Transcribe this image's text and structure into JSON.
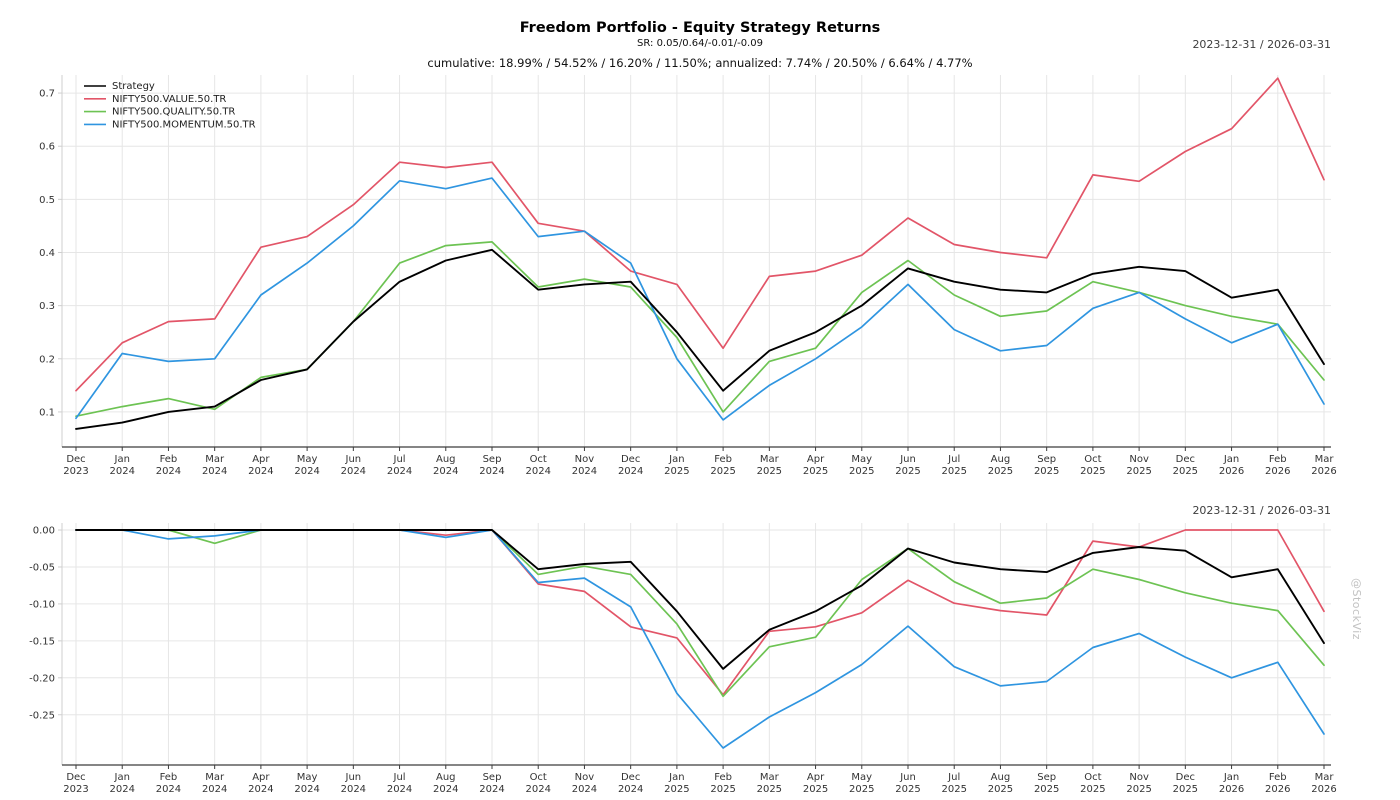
{
  "header": {
    "title": "Freedom Portfolio - Equity Strategy Returns",
    "subtitle_sr": "SR: 0.05/0.64/-0.01/-0.09",
    "stats_line": "cumulative: 18.99% / 54.52% / 16.20% / 11.50%; annualized: 7.74% / 20.50% / 6.64% / 4.77%",
    "date_range_top": "2023-12-31 / 2026-03-31",
    "date_range_bottom": "2023-12-31 / 2026-03-31"
  },
  "watermark": "@StockViz",
  "chart_data": [
    {
      "type": "line",
      "panel": "cumulative-returns",
      "date_range": "2023-12-31 / 2026-03-31",
      "grid": true,
      "show_legend": true,
      "legend_position": "top-left",
      "ylim": [
        0.034,
        0.734
      ],
      "yticks": {
        "values": [
          0.1,
          0.2,
          0.3,
          0.4,
          0.5,
          0.6,
          0.7
        ],
        "labels": [
          "0.1",
          "0.2",
          "0.3",
          "0.4",
          "0.5",
          "0.6",
          "0.7"
        ]
      },
      "categories": [
        "Dec 2023",
        "Jan 2024",
        "Feb 2024",
        "Mar 2024",
        "Apr 2024",
        "May 2024",
        "Jun 2024",
        "Jul 2024",
        "Aug 2024",
        "Sep 2024",
        "Oct 2024",
        "Nov 2024",
        "Dec 2024",
        "Jan 2025",
        "Feb 2025",
        "Mar 2025",
        "Apr 2025",
        "May 2025",
        "Jun 2025",
        "Jul 2025",
        "Aug 2025",
        "Sep 2025",
        "Oct 2025",
        "Nov 2025",
        "Dec 2025",
        "Jan 2026",
        "Feb 2026",
        "Mar 2026"
      ],
      "series": [
        {
          "name": "Strategy",
          "color": "#000000",
          "values": [
            0.068,
            0.08,
            0.1,
            0.11,
            0.16,
            0.18,
            0.27,
            0.345,
            0.385,
            0.405,
            0.33,
            0.34,
            0.345,
            0.25,
            0.14,
            0.215,
            0.25,
            0.3,
            0.37,
            0.345,
            0.33,
            0.325,
            0.36,
            0.373,
            0.365,
            0.315,
            0.33,
            0.19
          ]
        },
        {
          "name": "NIFTY500.VALUE.50.TR",
          "color": "#e25568",
          "values": [
            0.14,
            0.23,
            0.27,
            0.275,
            0.41,
            0.43,
            0.49,
            0.57,
            0.56,
            0.57,
            0.455,
            0.44,
            0.365,
            0.34,
            0.22,
            0.355,
            0.365,
            0.395,
            0.465,
            0.415,
            0.4,
            0.39,
            0.546,
            0.534,
            0.59,
            0.633,
            0.728,
            0.537
          ]
        },
        {
          "name": "NIFTY500.QUALITY.50.TR",
          "color": "#6dc353",
          "values": [
            0.092,
            0.11,
            0.125,
            0.105,
            0.165,
            0.18,
            0.27,
            0.38,
            0.413,
            0.42,
            0.335,
            0.35,
            0.335,
            0.24,
            0.1,
            0.195,
            0.22,
            0.325,
            0.385,
            0.32,
            0.28,
            0.29,
            0.345,
            0.325,
            0.3,
            0.28,
            0.265,
            0.16
          ]
        },
        {
          "name": "NIFTY500.MOMENTUM.50.TR",
          "color": "#2f95e0",
          "values": [
            0.088,
            0.21,
            0.195,
            0.2,
            0.32,
            0.38,
            0.45,
            0.535,
            0.52,
            0.54,
            0.43,
            0.44,
            0.38,
            0.2,
            0.085,
            0.15,
            0.2,
            0.26,
            0.34,
            0.255,
            0.215,
            0.225,
            0.295,
            0.325,
            0.275,
            0.23,
            0.265,
            0.115
          ]
        }
      ]
    },
    {
      "type": "line",
      "panel": "drawdowns",
      "date_range": "2023-12-31 / 2026-03-31",
      "grid": true,
      "show_legend": false,
      "ylim": [
        -0.318,
        0.0095
      ],
      "yticks": {
        "values": [
          0.0,
          -0.05,
          -0.1,
          -0.15,
          -0.2,
          -0.25
        ],
        "labels": [
          "0.00",
          "-0.05",
          "-0.10",
          "-0.15",
          "-0.20",
          "-0.25"
        ]
      },
      "categories": [
        "Dec 2023",
        "Jan 2024",
        "Feb 2024",
        "Mar 2024",
        "Apr 2024",
        "May 2024",
        "Jun 2024",
        "Jul 2024",
        "Aug 2024",
        "Sep 2024",
        "Oct 2024",
        "Nov 2024",
        "Dec 2024",
        "Jan 2025",
        "Feb 2025",
        "Mar 2025",
        "Apr 2025",
        "May 2025",
        "Jun 2025",
        "Jul 2025",
        "Aug 2025",
        "Sep 2025",
        "Oct 2025",
        "Nov 2025",
        "Dec 2025",
        "Jan 2026",
        "Feb 2026",
        "Mar 2026"
      ],
      "series": [
        {
          "name": "Strategy",
          "color": "#000000",
          "values": [
            0,
            0,
            0,
            0,
            0,
            0,
            0,
            0,
            0,
            0,
            -0.053,
            -0.046,
            -0.043,
            -0.11,
            -0.188,
            -0.135,
            -0.11,
            -0.075,
            -0.025,
            -0.044,
            -0.053,
            -0.057,
            -0.031,
            -0.023,
            -0.028,
            -0.064,
            -0.053,
            -0.153
          ]
        },
        {
          "name": "NIFTY500.VALUE.50.TR",
          "color": "#e25568",
          "values": [
            0,
            0,
            0,
            0,
            0,
            0,
            0,
            0,
            -0.007,
            0,
            -0.073,
            -0.083,
            -0.131,
            -0.146,
            -0.223,
            -0.137,
            -0.131,
            -0.112,
            -0.068,
            -0.099,
            -0.109,
            -0.115,
            -0.015,
            -0.023,
            0,
            0,
            0,
            -0.11
          ]
        },
        {
          "name": "NIFTY500.QUALITY.50.TR",
          "color": "#6dc353",
          "values": [
            0,
            0,
            0,
            -0.018,
            0,
            0,
            0,
            0,
            0,
            0,
            -0.06,
            -0.049,
            -0.06,
            -0.127,
            -0.225,
            -0.158,
            -0.145,
            -0.067,
            -0.025,
            -0.07,
            -0.099,
            -0.092,
            -0.053,
            -0.067,
            -0.085,
            -0.099,
            -0.109,
            -0.183
          ]
        },
        {
          "name": "NIFTY500.MOMENTUM.50.TR",
          "color": "#2f95e0",
          "values": [
            0,
            0,
            -0.012,
            -0.008,
            0,
            0,
            0,
            0,
            -0.01,
            0,
            -0.071,
            -0.065,
            -0.104,
            -0.221,
            -0.295,
            -0.253,
            -0.22,
            -0.182,
            -0.13,
            -0.185,
            -0.211,
            -0.205,
            -0.159,
            -0.14,
            -0.172,
            -0.2,
            -0.179,
            -0.276
          ]
        }
      ]
    }
  ]
}
